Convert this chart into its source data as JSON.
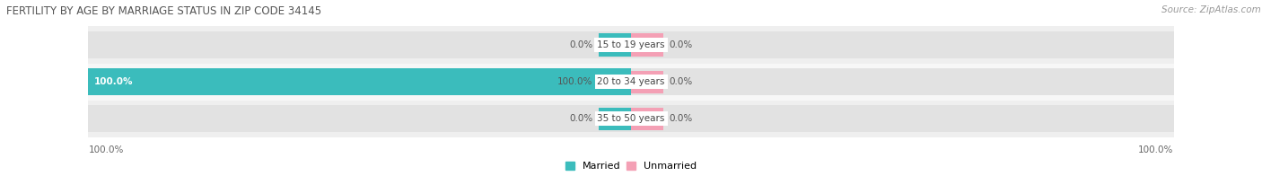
{
  "title": "FERTILITY BY AGE BY MARRIAGE STATUS IN ZIP CODE 34145",
  "source": "Source: ZipAtlas.com",
  "categories": [
    "15 to 19 years",
    "20 to 34 years",
    "35 to 50 years"
  ],
  "married_values": [
    0.0,
    100.0,
    0.0
  ],
  "unmarried_values": [
    0.0,
    0.0,
    0.0
  ],
  "married_color": "#3bbcbc",
  "unmarried_color": "#f4a0b5",
  "bar_bg_color": "#e0e0e0",
  "bar_bg_color2": "#ebebeb",
  "title_fontsize": 8.5,
  "source_fontsize": 7.5,
  "label_fontsize": 7.5,
  "category_fontsize": 7.5,
  "legend_fontsize": 8,
  "bg_color": "#ffffff",
  "row_bg_even": "#f0f0f0",
  "row_bg_odd": "#fafafa",
  "bottom_left_label": "100.0%",
  "bottom_right_label": "100.0%"
}
